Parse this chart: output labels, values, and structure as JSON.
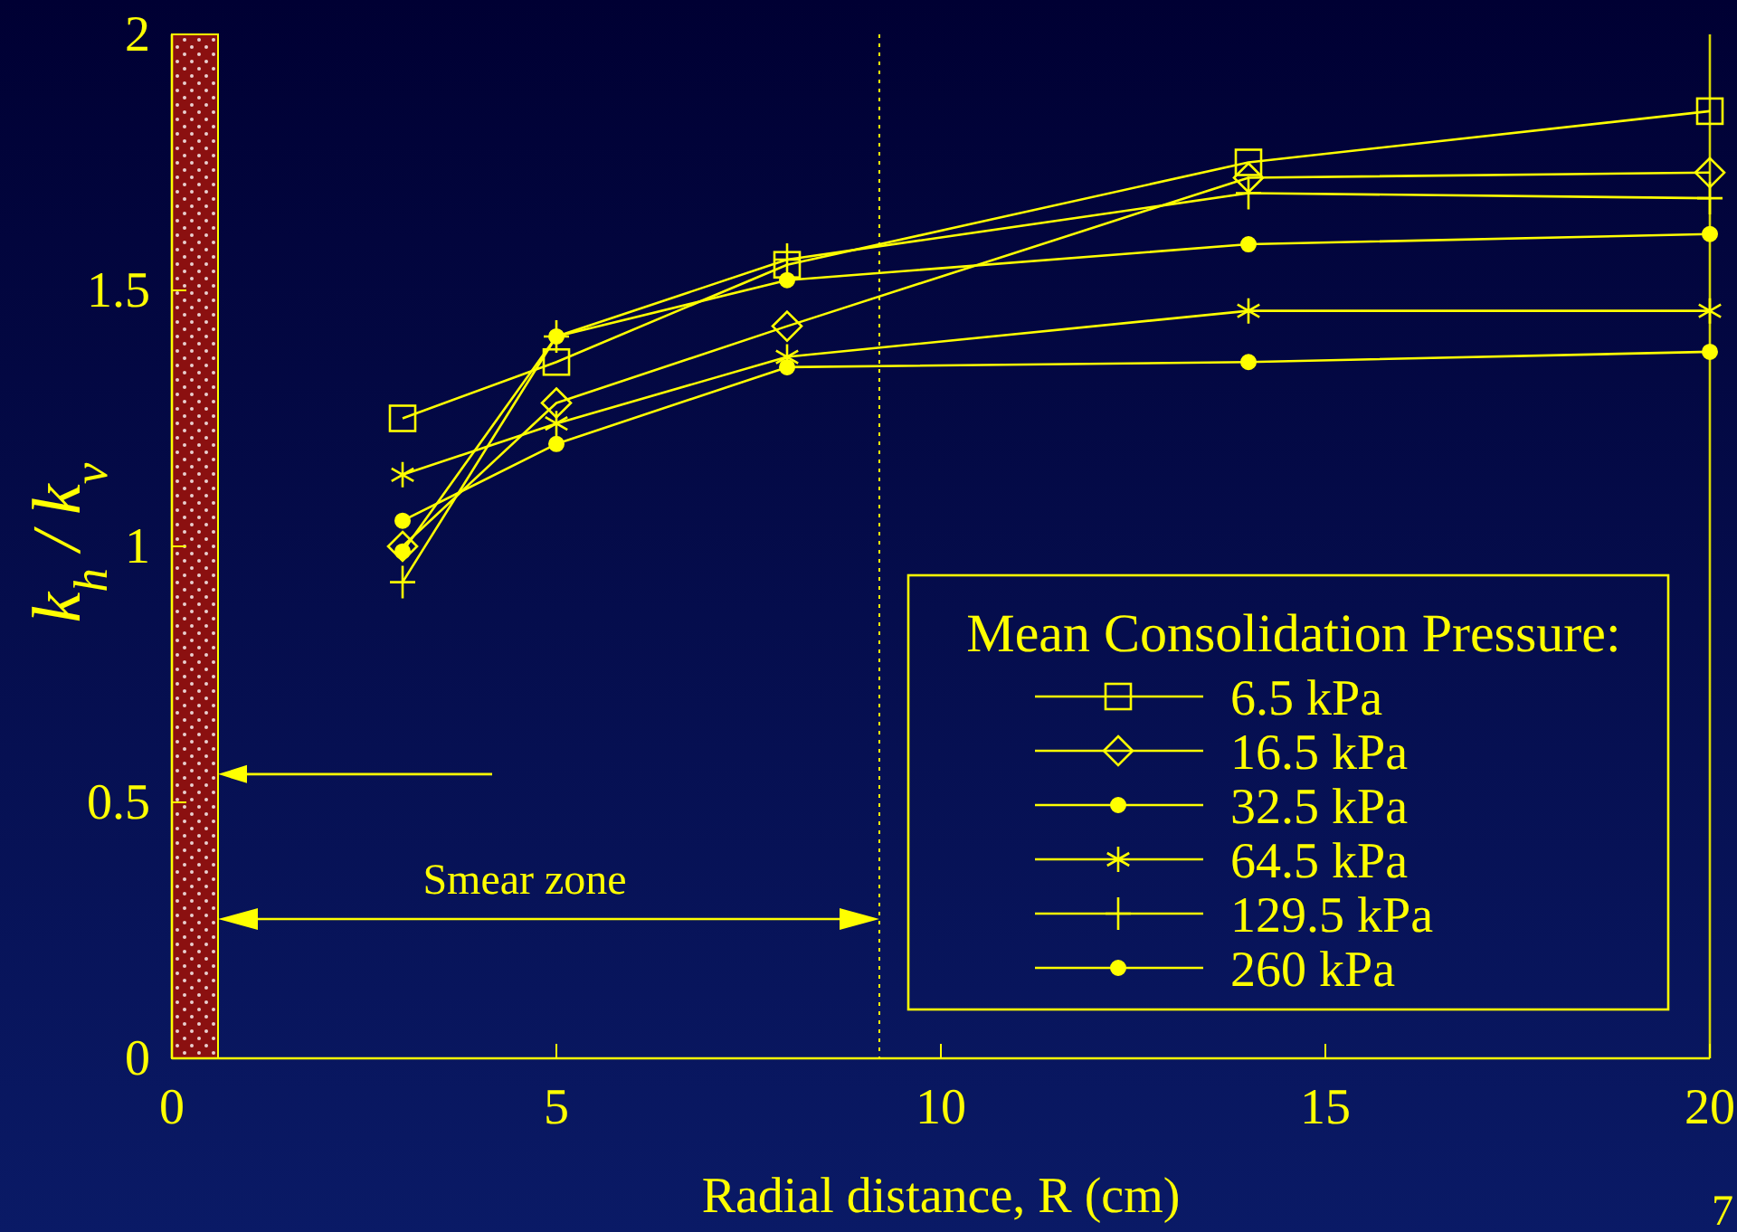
{
  "chart_data": {
    "type": "line",
    "xlabel": "Radial distance, R (cm)",
    "ylabel": "k$_{h}$ / k$_{v}$",
    "legend_title": "Mean Consolidation Pressure:",
    "legend": "bottom right",
    "grid": false,
    "x": [
      3,
      5,
      8,
      14,
      20
    ],
    "xlim": [
      0,
      20
    ],
    "ylim": [
      0,
      2
    ],
    "xticks": [
      0,
      5,
      10,
      15,
      20
    ],
    "yticks": [
      0,
      0.5,
      1,
      1.5,
      2
    ],
    "series": [
      {
        "name": "6.5 kPa",
        "color": "#ffff00",
        "marker": "square",
        "values": [
          1.25,
          1.36,
          1.55,
          1.75,
          1.85
        ]
      },
      {
        "name": "16.5 kPa",
        "color": "#ffff00",
        "marker": "diamond",
        "values": [
          1.0,
          1.28,
          1.43,
          1.72,
          1.73
        ]
      },
      {
        "name": "32.5 kPa",
        "color": "#ffff00",
        "marker": "circle",
        "values": [
          1.05,
          1.2,
          1.35,
          1.36,
          1.38
        ]
      },
      {
        "name": "64.5 kPa",
        "color": "#ffff00",
        "marker": "cross",
        "values": [
          1.14,
          1.24,
          1.37,
          1.46,
          1.46
        ]
      },
      {
        "name": "129.5 kPa",
        "color": "#ffff00",
        "marker": "cross",
        "values": [
          0.93,
          1.41,
          1.56,
          1.69,
          1.68
        ]
      },
      {
        "name": "260 kPa",
        "color": "#ffff00",
        "marker": "circle",
        "values": [
          0.99,
          1.41,
          1.52,
          1.59,
          1.61
        ]
      }
    ],
    "bands": [
      {
        "axis": "x",
        "from": 0,
        "to": 0.6,
        "color": "#8b1010"
      }
    ],
    "ref_lines": [
      {
        "axis": "x",
        "value": 9.2,
        "color": "#ffff00",
        "line_style": "dotted"
      }
    ],
    "annotations": [
      "Smear zone",
      "7"
    ]
  }
}
